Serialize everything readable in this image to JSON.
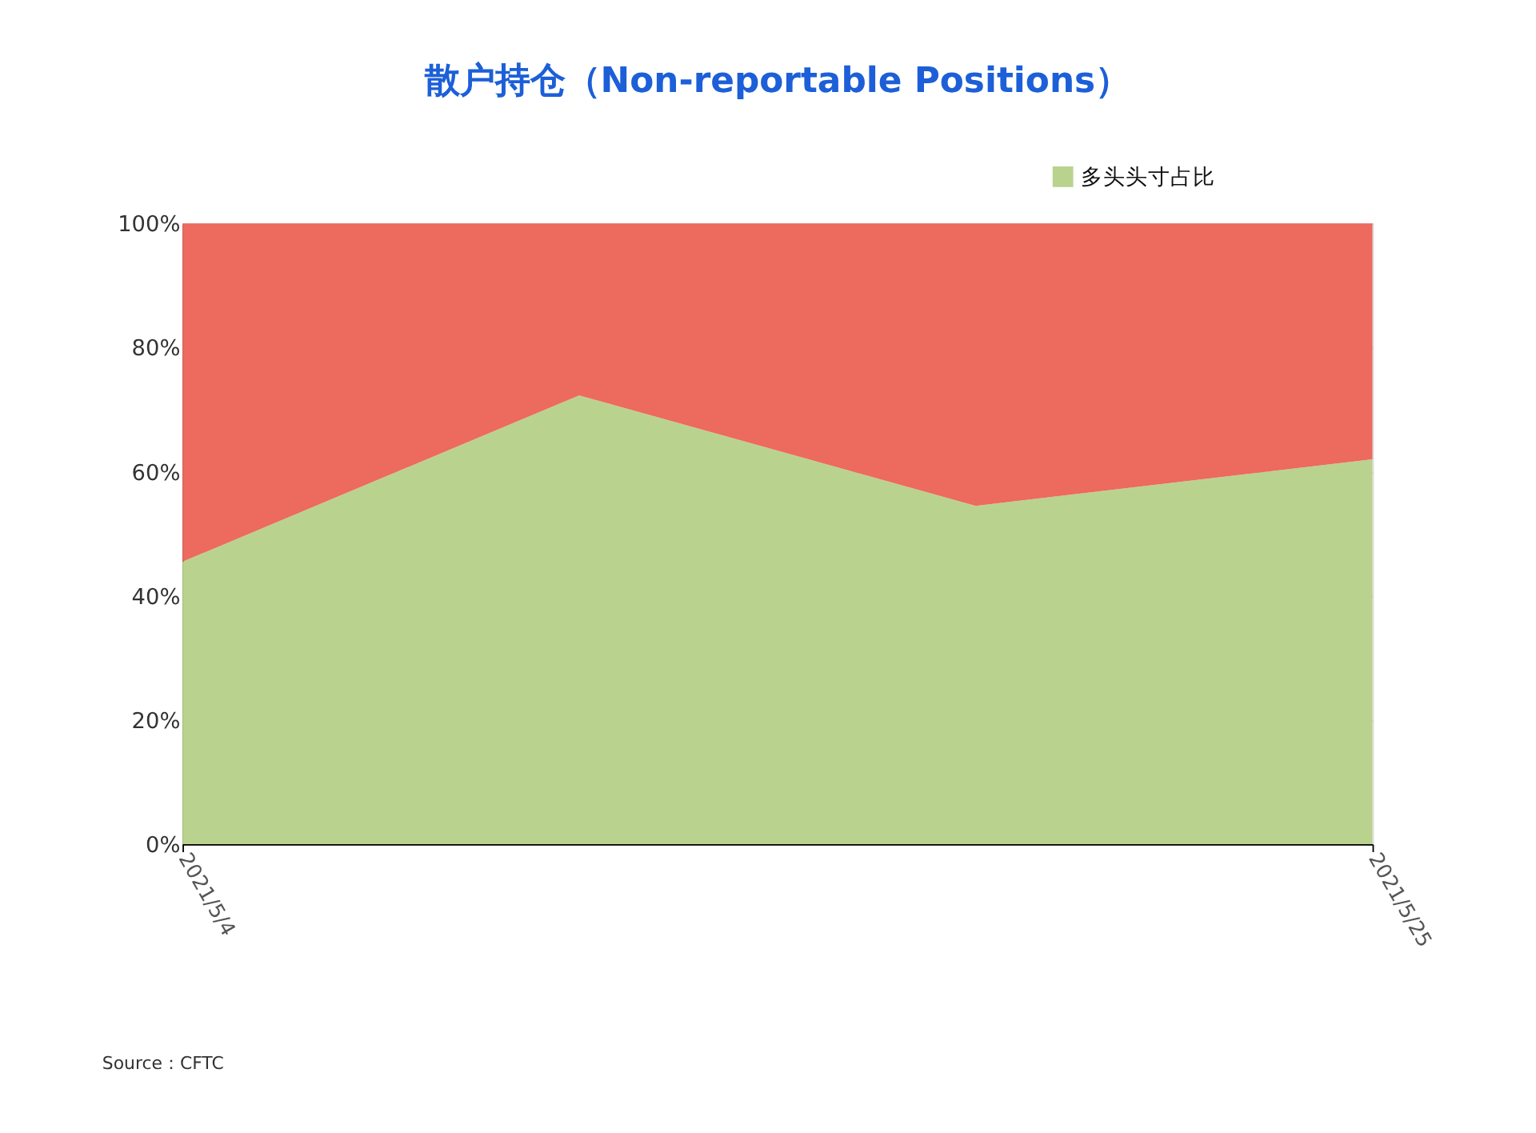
{
  "chart_data": {
    "type": "area",
    "title": "散户持仓（Non-reportable Positions）",
    "x": [
      "2021-05-04",
      "2021-05-11",
      "2021-05-18",
      "2021-05-25"
    ],
    "stacked": true,
    "series": [
      {
        "name": "多头头寸占比",
        "color": "#b9d38e",
        "values": [
          45.5,
          72.3,
          54.5,
          62.0
        ]
      },
      {
        "color": "#ec6a5e",
        "values": [
          54.5,
          27.7,
          45.5,
          38.0
        ]
      }
    ],
    "xlim": [
      "2021-05-04",
      "2021-05-25"
    ],
    "xticks": [
      {
        "value": "2021-05-04",
        "label": "2021/5/4"
      },
      {
        "value": "2021-05-25",
        "label": "2021/5/25"
      }
    ],
    "ylim": [
      0,
      100
    ],
    "yticks": [
      {
        "value": 0,
        "label": "0%"
      },
      {
        "value": 20,
        "label": "20%"
      },
      {
        "value": 40,
        "label": "40%"
      },
      {
        "value": 60,
        "label": "60%"
      },
      {
        "value": 80,
        "label": "80%"
      },
      {
        "value": 100,
        "label": "100%"
      }
    ],
    "grid": "y",
    "legend": "top right",
    "annotations": [
      "Source：CFTC"
    ]
  }
}
